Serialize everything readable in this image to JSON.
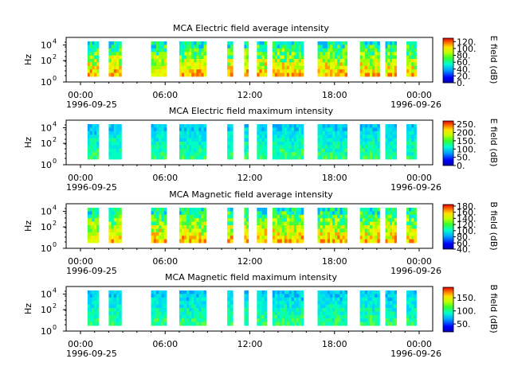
{
  "chart_data": [
    {
      "type": "heatmap",
      "title": "MCA  Electric field average intensity",
      "ylabel": "Hz",
      "y_ticks": [
        "10",
        "10",
        "10"
      ],
      "y_tick_exponents": [
        "0",
        "2",
        "4"
      ],
      "x_tick_labels": [
        "00:00",
        "06:00",
        "12:00",
        "18:00",
        "00:00"
      ],
      "x_dates": [
        "1996-09-25",
        "1996-09-26"
      ],
      "colorbar_label": "E field (dB)",
      "colorbar_ticks": [
        "0.",
        "20.",
        "40.",
        "60.",
        "80.",
        "100.",
        "120."
      ],
      "colorbar_range": [
        0,
        130
      ],
      "palette": "rainbow-avg"
    },
    {
      "type": "heatmap",
      "title": "MCA  Electric field maximum intensity",
      "ylabel": "Hz",
      "y_ticks": [
        "10",
        "10",
        "10"
      ],
      "y_tick_exponents": [
        "0",
        "2",
        "4"
      ],
      "x_tick_labels": [
        "00:00",
        "06:00",
        "12:00",
        "18:00",
        "00:00"
      ],
      "x_dates": [
        "1996-09-25",
        "1996-09-26"
      ],
      "colorbar_label": "E field (dB)",
      "colorbar_ticks": [
        "0.",
        "50.",
        "100.",
        "150.",
        "200.",
        "250."
      ],
      "colorbar_range": [
        0,
        270
      ],
      "palette": "rainbow-max"
    },
    {
      "type": "heatmap",
      "title": "MCA  Magnetic field average intensity",
      "ylabel": "Hz",
      "y_ticks": [
        "10",
        "10",
        "10"
      ],
      "y_tick_exponents": [
        "0",
        "2",
        "4"
      ],
      "x_tick_labels": [
        "00:00",
        "06:00",
        "12:00",
        "18:00",
        "00:00"
      ],
      "x_dates": [
        "1996-09-25",
        "1996-09-26"
      ],
      "colorbar_label": "B field (dB)",
      "colorbar_ticks": [
        "40.",
        "60.",
        "80.",
        "100.",
        "120.",
        "140.",
        "160.",
        "180."
      ],
      "colorbar_range": [
        40,
        185
      ],
      "palette": "rainbow-avg"
    },
    {
      "type": "heatmap",
      "title": "MCA  Magnetic field maximum intensity",
      "ylabel": "Hz",
      "y_ticks": [
        "10",
        "10",
        "10"
      ],
      "y_tick_exponents": [
        "0",
        "2",
        "4"
      ],
      "x_tick_labels": [
        "00:00",
        "06:00",
        "12:00",
        "18:00",
        "00:00"
      ],
      "x_dates": [
        "1996-09-25",
        "1996-09-26"
      ],
      "colorbar_label": "B field (dB)",
      "colorbar_ticks": [
        "50.",
        "100.",
        "150."
      ],
      "colorbar_range": [
        20,
        190
      ],
      "palette": "rainbow-max"
    }
  ]
}
